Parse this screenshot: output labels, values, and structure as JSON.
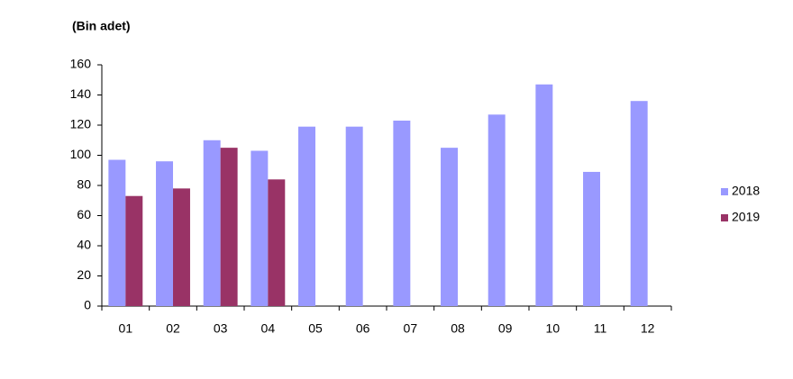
{
  "chart_data": {
    "type": "bar",
    "y_label": "(Bin adet)",
    "categories": [
      "01",
      "02",
      "03",
      "04",
      "05",
      "06",
      "07",
      "08",
      "09",
      "10",
      "11",
      "12"
    ],
    "series": [
      {
        "name": "2018",
        "color": "#9999ff",
        "values": [
          97,
          96,
          110,
          103,
          119,
          119,
          123,
          105,
          127,
          147,
          89,
          136
        ]
      },
      {
        "name": "2019",
        "color": "#993366",
        "values": [
          73,
          78,
          105,
          84,
          null,
          null,
          null,
          null,
          null,
          null,
          null,
          null
        ]
      }
    ],
    "ylim": [
      0,
      160
    ],
    "yticks": [
      0,
      20,
      40,
      60,
      80,
      100,
      120,
      140,
      160
    ],
    "grid": false,
    "legend": "right"
  }
}
